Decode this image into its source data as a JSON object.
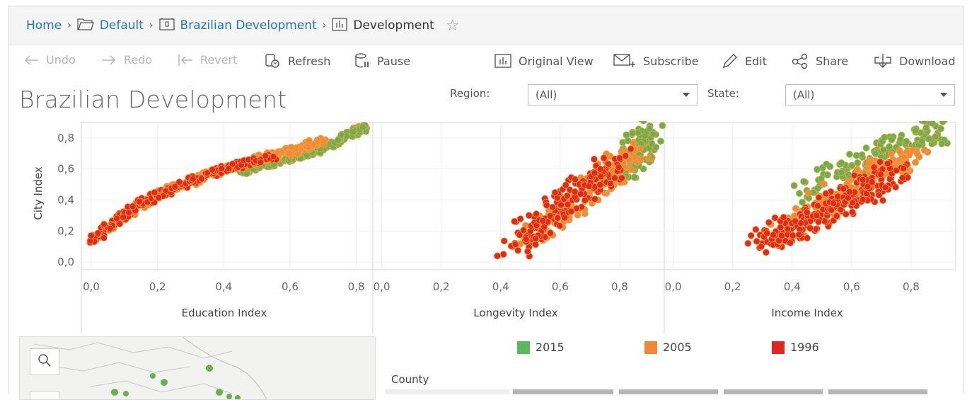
{
  "breadcrumb": {
    "home": "Home",
    "project": "Default",
    "workbook": "Brazilian Development",
    "view": "Development"
  },
  "toolbar": {
    "undo": "Undo",
    "redo": "Redo",
    "revert": "Revert",
    "refresh": "Refresh",
    "pause": "Pause",
    "original_view": "Original View",
    "subscribe": "Subscribe",
    "edit": "Edit",
    "share": "Share",
    "download": "Download"
  },
  "dashboard": {
    "title": "Brazilian Development"
  },
  "filters": {
    "region_label": "Region:",
    "region_value": "(All)",
    "state_label": "State:",
    "state_value": "(All)"
  },
  "legend": {
    "items": [
      {
        "label": "2015",
        "color": "#5cb85c"
      },
      {
        "label": "2005",
        "color": "#f0883a"
      },
      {
        "label": "1996",
        "color": "#e0261f"
      }
    ]
  },
  "table": {
    "header": "County"
  },
  "colors": {
    "link": "#1f77b4",
    "y2015": "#6ab04c",
    "y2005": "#f08a33",
    "y1996": "#e02a1c"
  },
  "chart_data": [
    {
      "type": "scatter",
      "title": "",
      "xlabel": "Education Index",
      "ylabel": "City Index",
      "xlim": [
        -0.03,
        0.85
      ],
      "ylim": [
        -0.05,
        0.9
      ],
      "xticks": [
        "0,0",
        "0,2",
        "0,4",
        "0,6",
        "0,8"
      ],
      "yticks": [
        "0,0",
        "0,2",
        "0,4",
        "0,6",
        "0,8"
      ],
      "series": [
        {
          "name": "1996",
          "points": [
            [
              0.0,
              0.13
            ],
            [
              0.05,
              0.22
            ],
            [
              0.1,
              0.3
            ],
            [
              0.15,
              0.38
            ],
            [
              0.2,
              0.43
            ],
            [
              0.25,
              0.47
            ],
            [
              0.3,
              0.52
            ],
            [
              0.35,
              0.56
            ],
            [
              0.4,
              0.6
            ],
            [
              0.45,
              0.63
            ],
            [
              0.5,
              0.65
            ],
            [
              0.55,
              0.68
            ]
          ]
        },
        {
          "name": "2005",
          "points": [
            [
              0.05,
              0.21
            ],
            [
              0.15,
              0.37
            ],
            [
              0.25,
              0.48
            ],
            [
              0.35,
              0.56
            ],
            [
              0.45,
              0.63
            ],
            [
              0.55,
              0.69
            ],
            [
              0.6,
              0.71
            ],
            [
              0.65,
              0.75
            ],
            [
              0.7,
              0.78
            ]
          ]
        },
        {
          "name": "2015",
          "points": [
            [
              0.45,
              0.58
            ],
            [
              0.5,
              0.61
            ],
            [
              0.55,
              0.64
            ],
            [
              0.6,
              0.67
            ],
            [
              0.65,
              0.7
            ],
            [
              0.7,
              0.74
            ],
            [
              0.75,
              0.79
            ],
            [
              0.8,
              0.85
            ],
            [
              0.82,
              0.87
            ]
          ]
        }
      ]
    },
    {
      "type": "scatter",
      "title": "",
      "xlabel": "Longevity Index",
      "ylabel": "",
      "xlim": [
        -0.03,
        0.95
      ],
      "ylim": [
        -0.05,
        0.9
      ],
      "xticks": [
        "0,0",
        "0,2",
        "0,4",
        "0,6",
        "0,8"
      ],
      "yticks": [],
      "series": [
        {
          "name": "1996",
          "points": [
            [
              0.44,
              0.1
            ],
            [
              0.5,
              0.2
            ],
            [
              0.55,
              0.28
            ],
            [
              0.6,
              0.35
            ],
            [
              0.65,
              0.42
            ],
            [
              0.7,
              0.5
            ],
            [
              0.75,
              0.57
            ],
            [
              0.8,
              0.67
            ]
          ]
        },
        {
          "name": "2005",
          "points": [
            [
              0.5,
              0.16
            ],
            [
              0.6,
              0.3
            ],
            [
              0.7,
              0.45
            ],
            [
              0.75,
              0.55
            ],
            [
              0.8,
              0.63
            ],
            [
              0.85,
              0.72
            ]
          ]
        },
        {
          "name": "2015",
          "points": [
            [
              0.8,
              0.58
            ],
            [
              0.83,
              0.66
            ],
            [
              0.86,
              0.72
            ],
            [
              0.88,
              0.78
            ],
            [
              0.9,
              0.86
            ]
          ]
        }
      ]
    },
    {
      "type": "scatter",
      "title": "",
      "xlabel": "Income Index",
      "ylabel": "",
      "xlim": [
        -0.03,
        0.95
      ],
      "ylim": [
        -0.05,
        0.9
      ],
      "xticks": [
        "0,0",
        "0,2",
        "0,4",
        "0,6",
        "0,8"
      ],
      "yticks": [],
      "series": [
        {
          "name": "1996",
          "points": [
            [
              0.3,
              0.12
            ],
            [
              0.35,
              0.17
            ],
            [
              0.4,
              0.22
            ],
            [
              0.45,
              0.27
            ],
            [
              0.5,
              0.32
            ],
            [
              0.55,
              0.37
            ],
            [
              0.6,
              0.42
            ],
            [
              0.65,
              0.47
            ],
            [
              0.7,
              0.53
            ],
            [
              0.75,
              0.59
            ]
          ]
        },
        {
          "name": "2005",
          "points": [
            [
              0.35,
              0.2
            ],
            [
              0.45,
              0.3
            ],
            [
              0.55,
              0.42
            ],
            [
              0.65,
              0.53
            ],
            [
              0.75,
              0.63
            ],
            [
              0.82,
              0.7
            ]
          ]
        },
        {
          "name": "2015",
          "points": [
            [
              0.45,
              0.42
            ],
            [
              0.55,
              0.55
            ],
            [
              0.65,
              0.64
            ],
            [
              0.75,
              0.74
            ],
            [
              0.85,
              0.82
            ],
            [
              0.9,
              0.86
            ]
          ]
        }
      ]
    }
  ]
}
